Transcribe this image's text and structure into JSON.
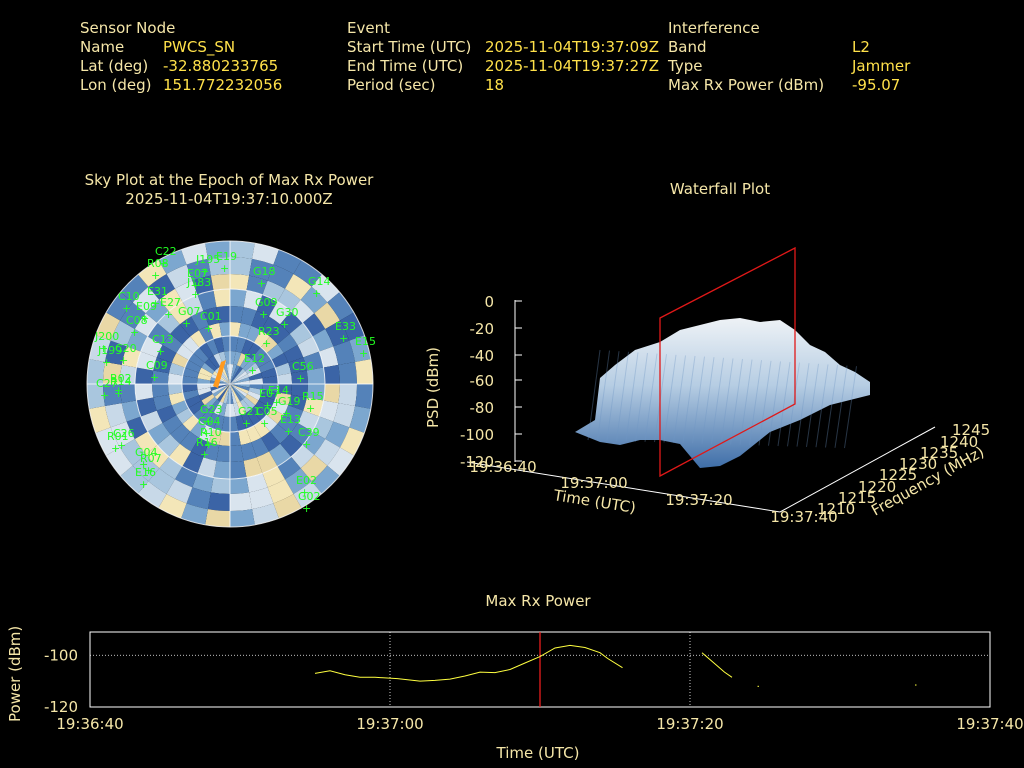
{
  "header": {
    "sensor_heading": "Sensor Node",
    "name_label": "Name",
    "name_value": "PWCS_SN",
    "lat_label": "Lat (deg)",
    "lat_value": "-32.880233765",
    "lon_label": "Lon (deg)",
    "lon_value": "151.772232056",
    "event_heading": "Event",
    "start_label": "Start Time (UTC)",
    "start_value": "2025-11-04T19:37:09Z",
    "end_label": "End Time (UTC)",
    "end_value": "2025-11-04T19:37:27Z",
    "period_label": "Period (sec)",
    "period_value": "18",
    "interf_heading": "Interference",
    "band_label": "Band",
    "band_value": "L2",
    "type_label": "Type",
    "type_value": "Jammer",
    "maxrx_label": "Max Rx Power (dBm)",
    "maxrx_value": "-95.07"
  },
  "sky_plot": {
    "title_line1": "Sky Plot at the Epoch of Max Rx Power",
    "title_line2": "2025-11-04T19:37:10.000Z",
    "satellites": [
      "C22",
      "R08",
      "J195",
      "E19",
      "G18",
      "G14",
      "E07",
      "J183",
      "E31",
      "C10",
      "E27",
      "E09",
      "C08",
      "G30",
      "E33",
      "E15",
      "C13",
      "C09",
      "C01",
      "G07",
      "G09",
      "R23",
      "C56",
      "E12",
      "R14",
      "J200",
      "J199",
      "C20",
      "R02",
      "C27",
      "G23",
      "G04",
      "C05",
      "R01",
      "C26",
      "R10",
      "E07",
      "G21",
      "G19",
      "R15",
      "E13",
      "C39",
      "R16",
      "E02",
      "R07",
      "G04",
      "E16",
      "G02",
      "E14"
    ]
  },
  "waterfall": {
    "title": "Waterfall Plot",
    "zlabel": "PSD (dBm)",
    "z_ticks": [
      "0",
      "-20",
      "-40",
      "-60",
      "-80",
      "-100",
      "-120"
    ],
    "time_ticks": [
      "19:36:40",
      "19:37:00",
      "19:37:20",
      "19:37:40"
    ],
    "time_label": "Time (UTC)",
    "freq_ticks": [
      "1210",
      "1215",
      "1220",
      "1225",
      "1230",
      "1235",
      "1240",
      "1245"
    ],
    "freq_label": "Frequency (MHz)"
  },
  "chart_data": {
    "type": "line",
    "title": "Max Rx Power",
    "xlabel": "Time (UTC)",
    "ylabel": "Power (dBm)",
    "x_ticks": [
      "19:36:40",
      "19:37:00",
      "19:37:20",
      "19:37:40"
    ],
    "y_ticks": [
      "-100",
      "-120"
    ],
    "ylim": [
      -120,
      -91
    ],
    "xlim_sec": [
      0,
      60
    ],
    "marker_sec": 30,
    "series": [
      {
        "segments": [
          [
            [
              15.0,
              -107.0
            ],
            [
              16.0,
              -106.0
            ],
            [
              17.0,
              -107.5
            ],
            [
              18.0,
              -108.5
            ],
            [
              19.0,
              -108.5
            ],
            [
              20.5,
              -109.0
            ],
            [
              22.0,
              -110.0
            ],
            [
              23.0,
              -109.7
            ],
            [
              24.0,
              -109.2
            ],
            [
              25.0,
              -108.0
            ],
            [
              26.0,
              -106.5
            ],
            [
              27.0,
              -106.7
            ],
            [
              28.0,
              -105.5
            ],
            [
              29.0,
              -103.0
            ],
            [
              30.0,
              -100.5
            ],
            [
              31.0,
              -97.2
            ],
            [
              32.0,
              -96.2
            ],
            [
              33.0,
              -97.0
            ],
            [
              34.0,
              -99.0
            ],
            [
              34.5,
              -101.2
            ],
            [
              35.5,
              -104.8
            ]
          ],
          [
            [
              40.8,
              -99.0
            ],
            [
              41.5,
              -102.5
            ],
            [
              42.3,
              -106.5
            ],
            [
              42.8,
              -108.5
            ]
          ],
          [
            [
              44.5,
              -112.0
            ]
          ],
          [
            [
              55.0,
              -111.5
            ]
          ]
        ]
      }
    ]
  },
  "colors": {
    "label": "#f5e6a8",
    "value": "#ffe14a",
    "satellite": "#22ff22",
    "marker": "#ff2020",
    "line": "#ffff40"
  }
}
